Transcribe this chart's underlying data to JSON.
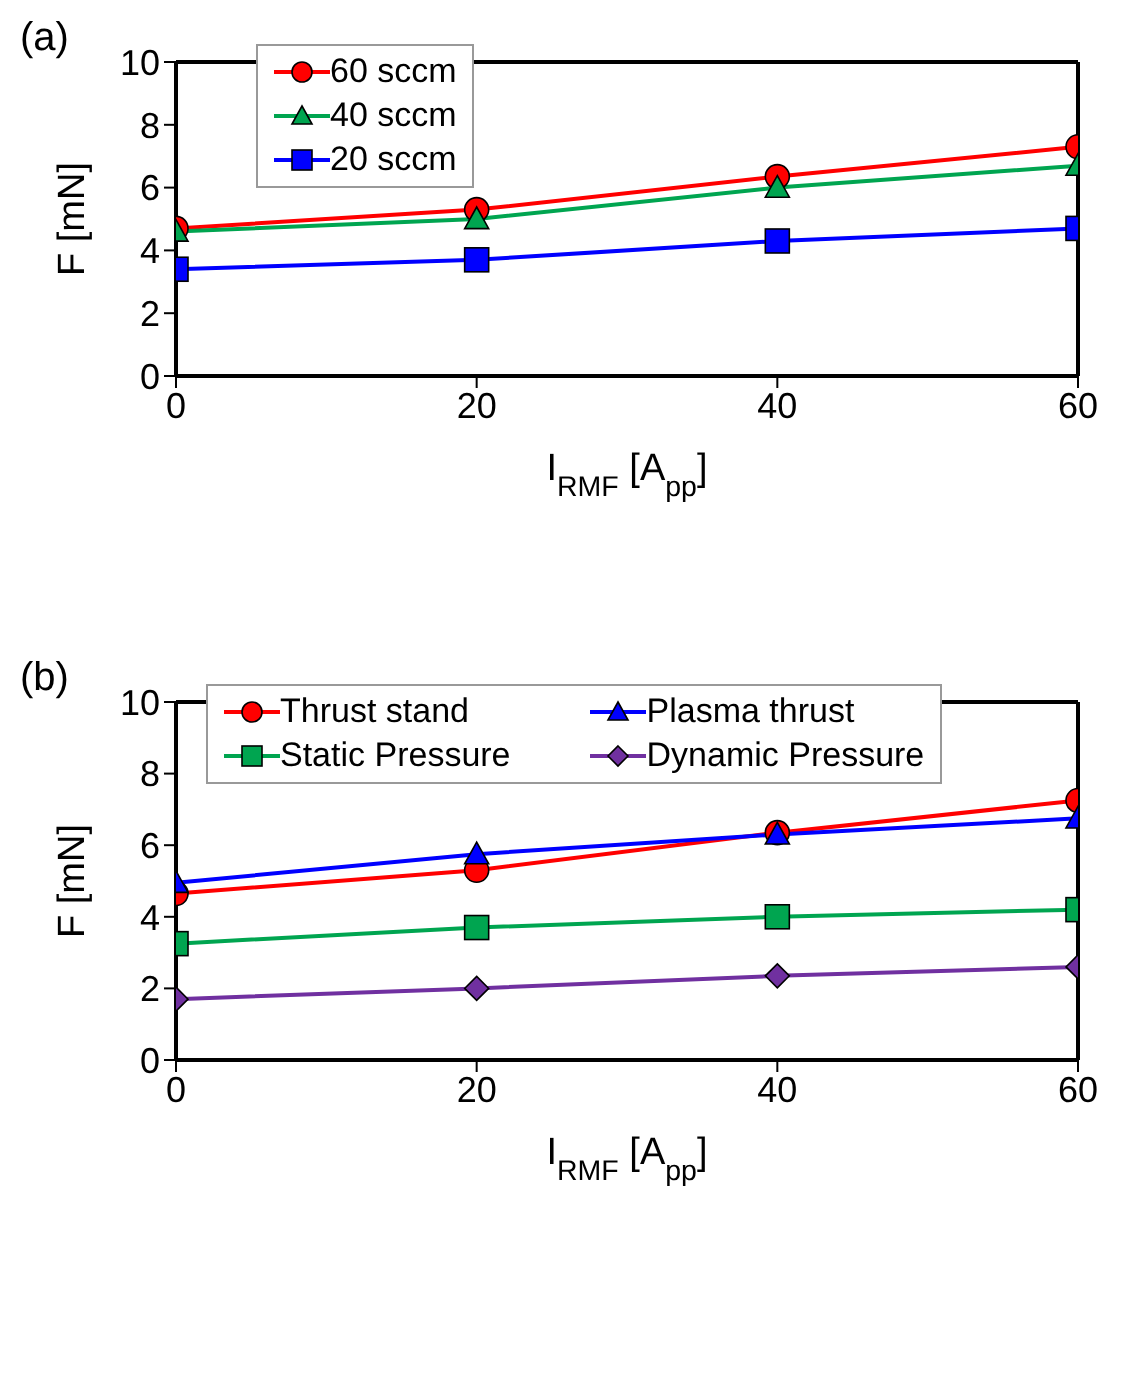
{
  "chart_data": [
    {
      "type": "line",
      "title": "(a)",
      "xlabel": "I$_{RMF}$ [A$_{pp}$]",
      "ylabel": "F [mN]",
      "x": [
        0,
        20,
        40,
        60
      ],
      "xlim": [
        0,
        60
      ],
      "xticks": [
        0,
        20,
        40,
        60
      ],
      "ylim": [
        0,
        10
      ],
      "yticks": [
        0,
        2,
        4,
        6,
        8,
        10
      ],
      "legend": "top left",
      "series": [
        {
          "name": "60 sccm",
          "color": "#ff0000",
          "marker": "circle",
          "values": [
            4.7,
            5.3,
            6.35,
            7.3
          ]
        },
        {
          "name": "40 sccm",
          "color": "#00a550",
          "marker": "triangle",
          "values": [
            4.6,
            5.0,
            6.0,
            6.7
          ]
        },
        {
          "name": "20 sccm",
          "color": "#0000ff",
          "marker": "square",
          "values": [
            3.4,
            3.7,
            4.3,
            4.7
          ]
        }
      ]
    },
    {
      "type": "line",
      "title": "(b)",
      "xlabel": "I$_{RMF}$ [A$_{pp}$]",
      "ylabel": "F [mN]",
      "x": [
        0,
        20,
        40,
        60
      ],
      "xlim": [
        0,
        60
      ],
      "xticks": [
        0,
        20,
        40,
        60
      ],
      "ylim": [
        0,
        10
      ],
      "yticks": [
        0,
        2,
        4,
        6,
        8,
        10
      ],
      "legend": "top",
      "series": [
        {
          "name": "Thrust stand",
          "color": "#ff0000",
          "marker": "circle",
          "values": [
            4.65,
            5.3,
            6.35,
            7.25
          ]
        },
        {
          "name": "Plasma thrust",
          "color": "#0000ff",
          "marker": "triangle",
          "values": [
            4.95,
            5.75,
            6.3,
            6.75
          ]
        },
        {
          "name": "Static Pressure",
          "color": "#00a550",
          "marker": "square",
          "values": [
            3.25,
            3.7,
            4.0,
            4.2
          ]
        },
        {
          "name": "Dynamic Pressure",
          "color": "#7030a0",
          "marker": "diamond",
          "values": [
            1.7,
            2.0,
            2.35,
            2.6
          ]
        }
      ]
    }
  ]
}
